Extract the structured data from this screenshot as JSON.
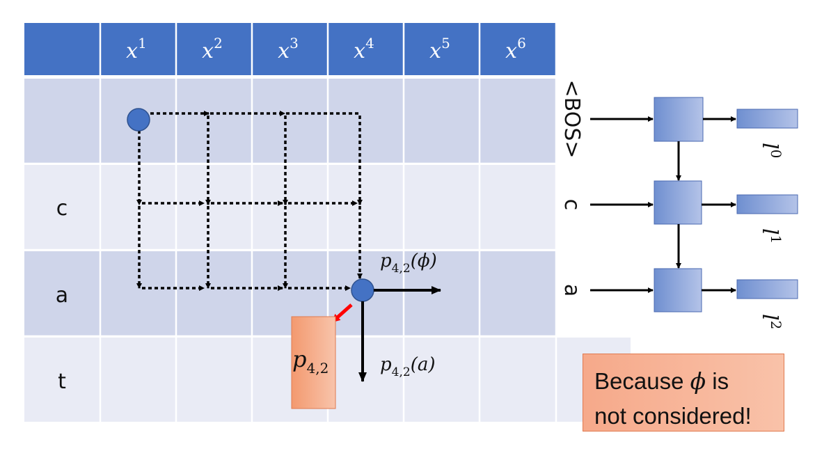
{
  "grid": {
    "columns": [
      {
        "base": "x",
        "sup": "1"
      },
      {
        "base": "x",
        "sup": "2"
      },
      {
        "base": "x",
        "sup": "3"
      },
      {
        "base": "x",
        "sup": "4"
      },
      {
        "base": "x",
        "sup": "5"
      },
      {
        "base": "x",
        "sup": "6"
      }
    ],
    "rows": [
      "",
      "c",
      "a",
      "t"
    ]
  },
  "labels": {
    "p_phi": {
      "base": "p",
      "sub": "4,2",
      "arg": "(ϕ)"
    },
    "p_a": {
      "base": "p",
      "sub": "4,2",
      "arg": "(a)"
    },
    "p_box": {
      "base": "p",
      "sub": "4,2"
    }
  },
  "rnn": {
    "inputs": [
      "<BOS>",
      "c",
      "a"
    ],
    "outputs": [
      {
        "base": "l",
        "sup": "0"
      },
      {
        "base": "l",
        "sup": "1"
      },
      {
        "base": "l",
        "sup": "2"
      }
    ]
  },
  "note": {
    "line1_before": "Because ",
    "symbol": "ϕ",
    "line1_after": " is",
    "line2": "not considered!"
  },
  "colors": {
    "header": "#4472c4",
    "row_dark": "#cfd5ea",
    "row_light": "#e9ebf5",
    "node": "#4472c4",
    "highlight_arrow": "#ff0000",
    "box_orange": "#f4a582"
  }
}
